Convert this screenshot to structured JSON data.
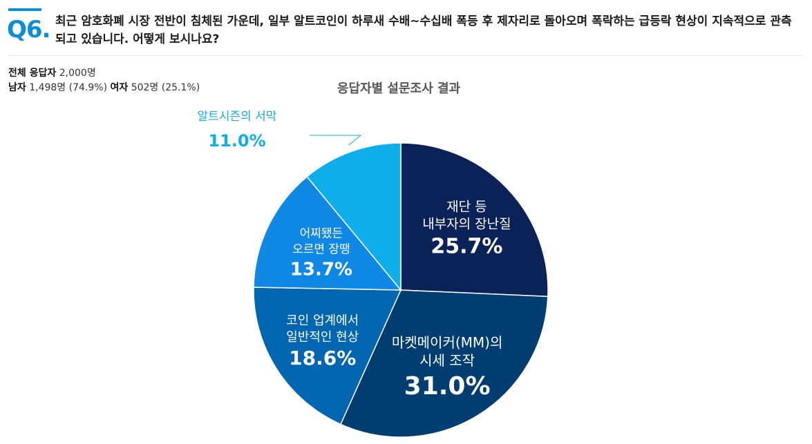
{
  "question": {
    "number": "Q6.",
    "text": "최근 암호화폐 시장 전반이 침체된 가운데, 일부 알트코인이 하루새 수배~수십배 폭등 후 제자리로 돌아오며 폭락하는 급등락 현상이 지속적으로 관측되고 있습니다. 어떻게 보시나요?"
  },
  "stats": {
    "total_label": "전체 응답자",
    "total_value": "2,000명",
    "male_label": "남자",
    "male_value": "1,498명 (74.9%)",
    "female_label": "여자",
    "female_value": "502명 (25.1%)"
  },
  "colors": {
    "accent": "#0d8fd8",
    "slice_1": "#0b2258",
    "slice_2": "#003e72",
    "slice_3": "#0066b2",
    "slice_4": "#0f88e6",
    "slice_5": "#0daeea"
  },
  "chart_data": {
    "type": "pie",
    "title": "응답자별 설문조사 결과",
    "slices": [
      {
        "label_lines": [
          "재단 등",
          "내부자의 장난질"
        ],
        "value": 25.7,
        "pct_label": "25.7%"
      },
      {
        "label_lines": [
          "마켓메이커(MM)의",
          "시세 조작"
        ],
        "value": 31.0,
        "pct_label": "31.0%"
      },
      {
        "label_lines": [
          "코인 업계에서",
          "일반적인 현상"
        ],
        "value": 18.6,
        "pct_label": "18.6%"
      },
      {
        "label_lines": [
          "어찌됐든",
          "오르면 장땡"
        ],
        "value": 13.7,
        "pct_label": "13.7%"
      },
      {
        "label_lines": [
          "알트시즌의 서막"
        ],
        "value": 11.0,
        "pct_label": "11.0%"
      }
    ]
  }
}
